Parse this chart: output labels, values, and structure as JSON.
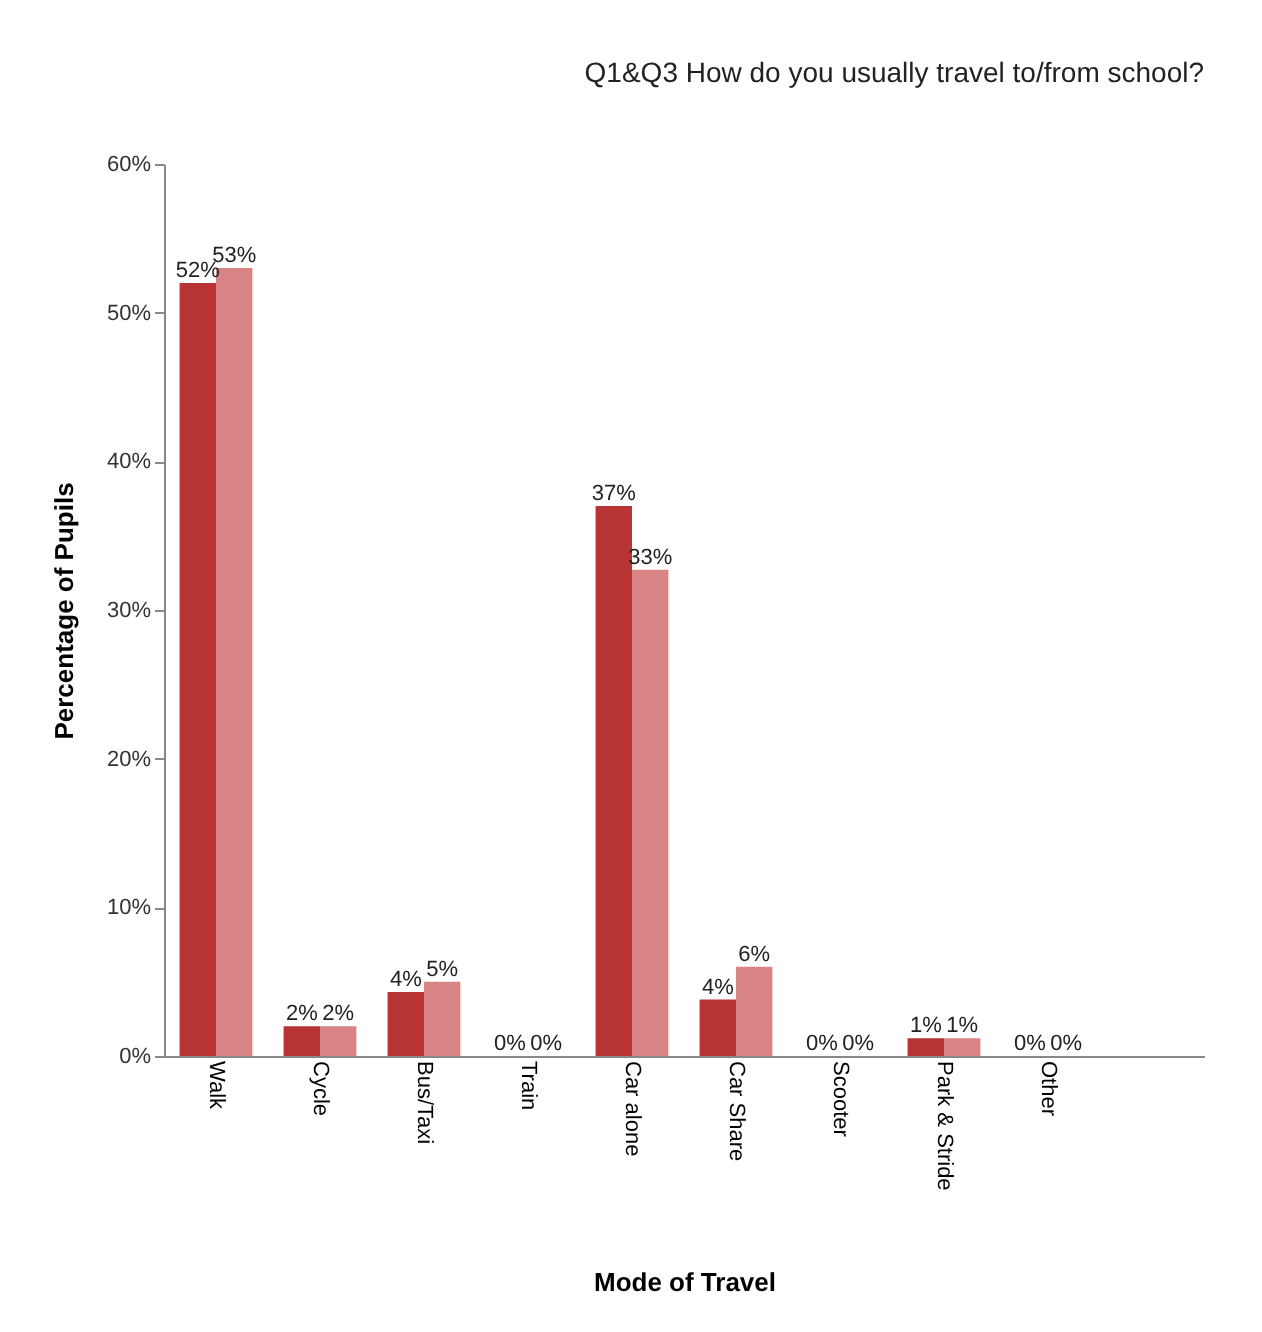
{
  "chart_data": {
    "type": "bar",
    "title": "Q1&Q3 How do you usually travel to/from school?",
    "xlabel": "Mode of Travel",
    "ylabel": "Percentage of Pupils",
    "categories": [
      "Walk",
      "Cycle",
      "Bus/Taxi",
      "Train",
      "Car alone",
      "Car Share",
      "Scooter",
      "Park & Stride",
      "Other",
      null
    ],
    "series": [
      {
        "color": "#b83434",
        "values": [
          52,
          2,
          4.3,
          0,
          37,
          3.8,
          0,
          1.2,
          0,
          null
        ],
        "value_labels": [
          "52%",
          "2%",
          "4%",
          "0%",
          "37%",
          "4%",
          "0%",
          "1%",
          "0%",
          null
        ]
      },
      {
        "color": "#d98484",
        "values": [
          53,
          2,
          5,
          0,
          32.7,
          6,
          0,
          1.2,
          0,
          null
        ],
        "value_labels": [
          "53%",
          "2%",
          "5%",
          "0%",
          "33%",
          "6%",
          "0%",
          "1%",
          "0%",
          null
        ]
      }
    ],
    "ylim": [
      0,
      60
    ],
    "yticks": [
      {
        "value": 0,
        "label": "0%"
      },
      {
        "value": 10,
        "label": "10%"
      },
      {
        "value": 20,
        "label": "20%"
      },
      {
        "value": 30,
        "label": "30%"
      },
      {
        "value": 40,
        "label": "40%"
      },
      {
        "value": 50,
        "label": "50%"
      },
      {
        "value": 60,
        "label": "60%"
      }
    ],
    "grid": false,
    "legend": false
  }
}
